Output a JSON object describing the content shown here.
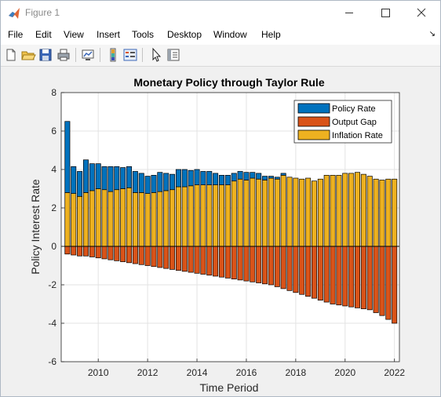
{
  "window": {
    "title": "Figure 1"
  },
  "menu": {
    "items": [
      "File",
      "Edit",
      "View",
      "Insert",
      "Tools",
      "Desktop",
      "Window",
      "Help"
    ]
  },
  "toolbar": {
    "icons": [
      "new-figure-icon",
      "open-file-icon",
      "save-icon",
      "print-icon",
      "link-plot-icon",
      "insert-colorbar-icon",
      "insert-legend-icon",
      "edit-plot-icon",
      "property-inspector-icon"
    ]
  },
  "colors": {
    "policy": "#0072BD",
    "output": "#D95319",
    "inflation": "#EDB120"
  },
  "chart_data": {
    "type": "bar",
    "stacked": true,
    "title": "Monetary Policy through Taylor Rule",
    "xlabel": "Time Period",
    "ylabel": "Policy Interest Rate",
    "xlim": [
      2008.5,
      2022.2
    ],
    "ylim": [
      -6,
      8
    ],
    "xticks": [
      2010,
      2012,
      2014,
      2016,
      2018,
      2020,
      2022
    ],
    "yticks": [
      -6,
      -4,
      -2,
      0,
      2,
      4,
      6,
      8
    ],
    "grid": true,
    "legend_position": "top-right",
    "bar_width": 0.2,
    "x_start": 2008.75,
    "x_step": 0.25,
    "series": [
      {
        "name": "Policy Rate",
        "values": [
          3.7,
          1.4,
          1.3,
          1.7,
          1.4,
          1.3,
          1.2,
          1.3,
          1.2,
          1.1,
          1.1,
          1.1,
          1.0,
          0.9,
          0.9,
          1.0,
          0.9,
          0.8,
          0.9,
          0.9,
          0.8,
          0.8,
          0.7,
          0.7,
          0.6,
          0.5,
          0.5,
          0.4,
          0.4,
          0.4,
          0.3,
          0.3,
          0.2,
          0.1,
          0.1,
          0.1,
          0,
          0,
          0,
          0,
          0,
          0,
          0,
          0,
          0,
          0,
          0,
          0,
          0,
          0,
          0,
          0,
          0,
          0
        ]
      },
      {
        "name": "Output Gap",
        "values": [
          -0.4,
          -0.45,
          -0.5,
          -0.5,
          -0.55,
          -0.6,
          -0.65,
          -0.7,
          -0.75,
          -0.8,
          -0.85,
          -0.9,
          -0.95,
          -1.0,
          -1.05,
          -1.1,
          -1.15,
          -1.2,
          -1.25,
          -1.3,
          -1.35,
          -1.4,
          -1.45,
          -1.5,
          -1.55,
          -1.6,
          -1.65,
          -1.7,
          -1.75,
          -1.8,
          -1.85,
          -1.9,
          -1.95,
          -2.0,
          -2.1,
          -2.2,
          -2.3,
          -2.4,
          -2.5,
          -2.6,
          -2.7,
          -2.8,
          -2.9,
          -3.0,
          -3.05,
          -3.1,
          -3.15,
          -3.2,
          -3.25,
          -3.3,
          -3.45,
          -3.6,
          -3.8,
          -4.0
        ]
      },
      {
        "name": "Inflation Rate",
        "values": [
          2.8,
          2.75,
          2.6,
          2.8,
          2.9,
          3.0,
          2.95,
          2.85,
          2.95,
          3.0,
          3.05,
          2.8,
          2.8,
          2.75,
          2.8,
          2.85,
          2.9,
          2.95,
          3.1,
          3.1,
          3.15,
          3.2,
          3.2,
          3.2,
          3.2,
          3.2,
          3.2,
          3.4,
          3.5,
          3.45,
          3.55,
          3.5,
          3.45,
          3.55,
          3.5,
          3.7,
          3.6,
          3.55,
          3.5,
          3.55,
          3.4,
          3.5,
          3.7,
          3.7,
          3.7,
          3.8,
          3.8,
          3.85,
          3.75,
          3.65,
          3.5,
          3.45,
          3.5,
          3.5
        ]
      }
    ]
  }
}
